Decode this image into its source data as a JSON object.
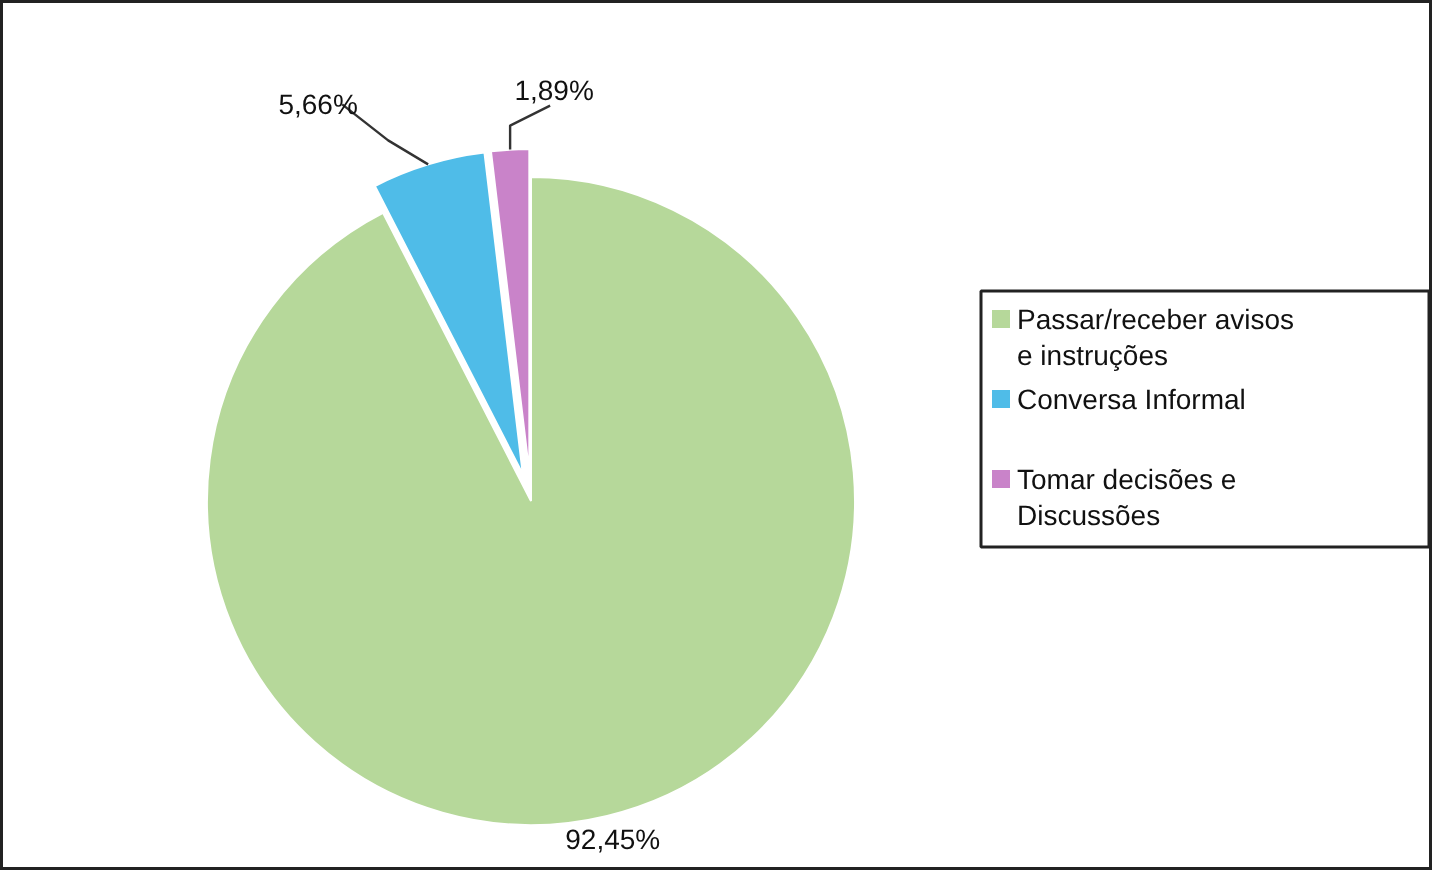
{
  "chart_data": {
    "type": "pie",
    "categories": [
      "Passar/receber avisos e instruções",
      "Conversa Informal",
      "Tomar decisões e Discussões"
    ],
    "values": [
      92.45,
      5.66,
      1.89
    ],
    "colors": [
      "#b6d89a",
      "#4fbce8",
      "#c983c9"
    ],
    "value_labels": [
      "92,45%",
      "5,66%",
      "1,89%"
    ],
    "legend": "right"
  }
}
